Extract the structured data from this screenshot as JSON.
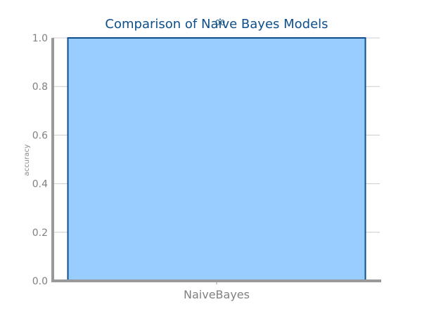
{
  "chart_data": {
    "type": "bar",
    "title": "Comparison of Naive Bayes Models",
    "title_overlap_text": "00",
    "categories": [
      "NaiveBayes"
    ],
    "values": [
      1.0
    ],
    "xlabel": "",
    "ylabel": "accuracy",
    "ylim": [
      0,
      1.0
    ],
    "yticks": [
      "0.0",
      "0.2",
      "0.4",
      "0.6",
      "0.8",
      "1.0"
    ],
    "grid": true,
    "legend": "none",
    "colors": {
      "bar_fill": "#99ccff",
      "bar_edge": "#0d4f8b",
      "axis": "#999999",
      "grid": "#cccccc",
      "title": "#0d4f8b"
    }
  }
}
